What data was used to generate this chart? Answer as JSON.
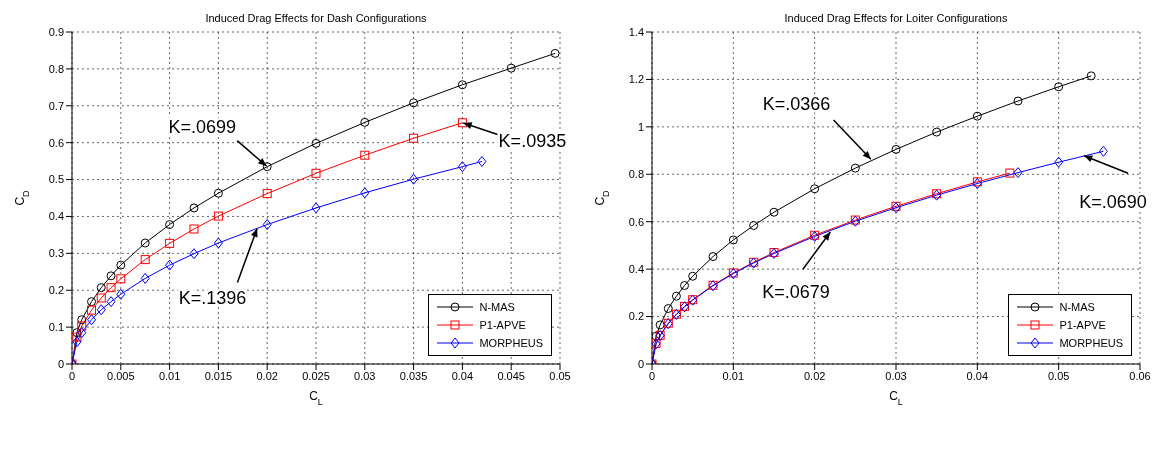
{
  "chart_data": [
    {
      "type": "line",
      "title": "Induced Drag Effects for Dash Configurations",
      "xlabel": "C$_{L}$",
      "ylabel": "C$_{D}$",
      "xlim": [
        0,
        0.05
      ],
      "xticks": [
        0,
        0.005,
        0.01,
        0.015,
        0.02,
        0.025,
        0.03,
        0.035,
        0.04,
        0.045,
        0.05
      ],
      "ylim": [
        0,
        0.9
      ],
      "yticks": [
        0,
        0.1,
        0.2,
        0.3,
        0.4,
        0.5,
        0.6,
        0.7,
        0.8,
        0.9
      ],
      "grid": true,
      "legend": "bottom right",
      "line_style": "solid",
      "series": [
        {
          "name": "N-MAS",
          "color": "#000000",
          "marker": "circle",
          "x": [
            0,
            0.0005,
            0.001,
            0.002,
            0.003,
            0.004,
            0.005,
            0.0075,
            0.01,
            0.0125,
            0.015,
            0.02,
            0.025,
            0.03,
            0.035,
            0.04,
            0.045,
            0.0495
          ],
          "values": [
            0,
            0.085,
            0.12,
            0.169,
            0.207,
            0.239,
            0.268,
            0.328,
            0.378,
            0.423,
            0.463,
            0.535,
            0.598,
            0.655,
            0.708,
            0.757,
            0.802,
            0.842
          ]
        },
        {
          "name": "P1-APVE",
          "color": "#ff0000",
          "marker": "square",
          "x": [
            0,
            0.0005,
            0.001,
            0.002,
            0.003,
            0.004,
            0.005,
            0.0075,
            0.01,
            0.0125,
            0.015,
            0.02,
            0.025,
            0.03,
            0.035,
            0.04
          ],
          "values": [
            0,
            0.073,
            0.103,
            0.146,
            0.179,
            0.207,
            0.231,
            0.283,
            0.327,
            0.366,
            0.401,
            0.462,
            0.517,
            0.566,
            0.612,
            0.654
          ]
        },
        {
          "name": "MORPHEUS",
          "color": "#0000ff",
          "marker": "diamond",
          "x": [
            0,
            0.0005,
            0.001,
            0.002,
            0.003,
            0.004,
            0.005,
            0.0075,
            0.01,
            0.0125,
            0.015,
            0.02,
            0.025,
            0.03,
            0.035,
            0.04,
            0.042
          ],
          "values": [
            0,
            0.06,
            0.085,
            0.12,
            0.147,
            0.169,
            0.189,
            0.232,
            0.268,
            0.299,
            0.328,
            0.378,
            0.423,
            0.464,
            0.501,
            0.535,
            0.549
          ]
        }
      ],
      "annotations": [
        {
          "text": "K=.0699",
          "x": 0.02,
          "y": 0.535
        },
        {
          "text": "K=.0935",
          "x": 0.04,
          "y": 0.654
        },
        {
          "text": "K=.1396",
          "x": 0.019,
          "y": 0.37
        }
      ]
    },
    {
      "type": "line",
      "title": "Induced Drag Effects for Loiter Configurations",
      "xlabel": "C$_{L}$",
      "ylabel": "C$_{D}$",
      "xlim": [
        0,
        0.06
      ],
      "xticks": [
        0,
        0.01,
        0.02,
        0.03,
        0.04,
        0.05,
        0.06
      ],
      "ylim": [
        0,
        1.4
      ],
      "yticks": [
        0,
        0.2,
        0.4,
        0.6,
        0.8,
        1,
        1.2,
        1.4
      ],
      "grid": true,
      "legend": "bottom right",
      "line_style": "solid",
      "series": [
        {
          "name": "N-MAS",
          "color": "#000000",
          "marker": "circle",
          "x": [
            0,
            0.0005,
            0.001,
            0.002,
            0.003,
            0.004,
            0.005,
            0.0075,
            0.01,
            0.0125,
            0.015,
            0.02,
            0.025,
            0.03,
            0.035,
            0.04,
            0.045,
            0.05,
            0.054
          ],
          "values": [
            0,
            0.117,
            0.165,
            0.234,
            0.286,
            0.331,
            0.37,
            0.453,
            0.523,
            0.584,
            0.64,
            0.739,
            0.826,
            0.905,
            0.978,
            1.045,
            1.109,
            1.169,
            1.215
          ]
        },
        {
          "name": "P1-APVE",
          "color": "#ff0000",
          "marker": "square",
          "x": [
            0,
            0.0005,
            0.001,
            0.002,
            0.003,
            0.004,
            0.005,
            0.0075,
            0.01,
            0.0125,
            0.015,
            0.02,
            0.025,
            0.03,
            0.035,
            0.04,
            0.044
          ],
          "values": [
            0,
            0.086,
            0.121,
            0.172,
            0.21,
            0.243,
            0.271,
            0.332,
            0.384,
            0.429,
            0.47,
            0.543,
            0.607,
            0.665,
            0.718,
            0.768,
            0.805
          ]
        },
        {
          "name": "MORPHEUS",
          "color": "#0000ff",
          "marker": "diamond",
          "x": [
            0,
            0.0005,
            0.001,
            0.002,
            0.003,
            0.004,
            0.005,
            0.0075,
            0.01,
            0.0125,
            0.015,
            0.02,
            0.025,
            0.03,
            0.035,
            0.04,
            0.045,
            0.05,
            0.0555
          ],
          "values": [
            0,
            0.085,
            0.12,
            0.17,
            0.209,
            0.241,
            0.269,
            0.33,
            0.381,
            0.426,
            0.466,
            0.538,
            0.602,
            0.659,
            0.712,
            0.761,
            0.807,
            0.851,
            0.897
          ]
        }
      ],
      "annotations": [
        {
          "text": "K=.0366",
          "x": 0.027,
          "y": 0.86
        },
        {
          "text": "K=.0690",
          "x": 0.053,
          "y": 0.88
        },
        {
          "text": "K=.0679",
          "x": 0.022,
          "y": 0.56
        }
      ]
    }
  ]
}
